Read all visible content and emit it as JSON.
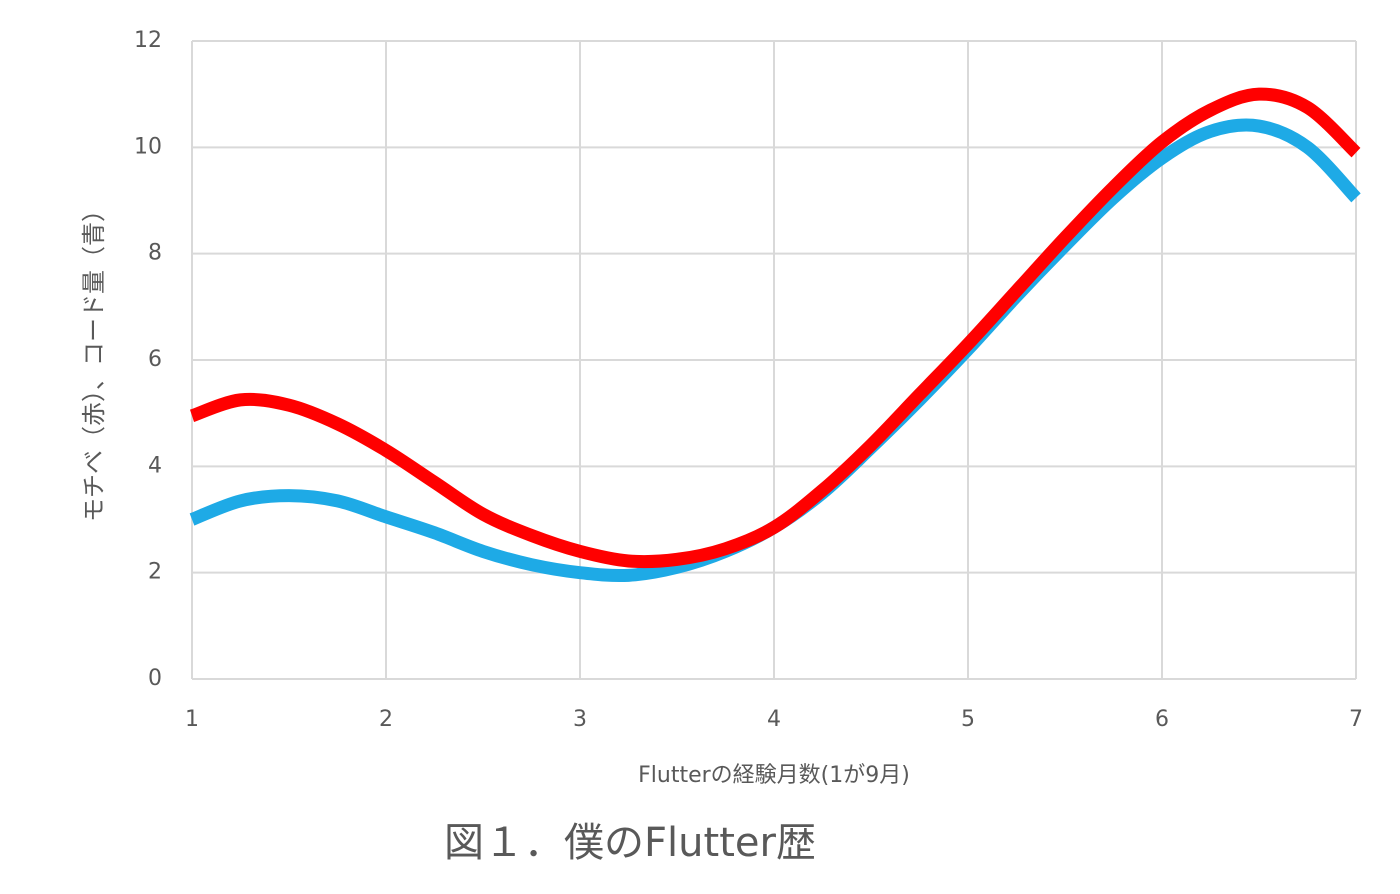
{
  "chart_data": {
    "type": "line",
    "x_label": "Flutterの経験月数(1が9月)",
    "y_label": "モチベ（赤）、コード量（青）",
    "x": [
      1,
      1.25,
      1.5,
      1.75,
      2,
      2.25,
      2.5,
      2.75,
      3,
      3.25,
      3.5,
      3.75,
      4,
      4.25,
      4.5,
      4.75,
      5,
      5.25,
      5.5,
      5.75,
      6,
      6.25,
      6.5,
      6.75,
      7
    ],
    "series": [
      {
        "color": "#1eaae6",
        "values": [
          3.0,
          3.35,
          3.45,
          3.35,
          3.05,
          2.75,
          2.4,
          2.15,
          2.0,
          1.95,
          2.1,
          2.4,
          2.85,
          3.5,
          4.35,
          5.25,
          6.2,
          7.2,
          8.15,
          9.05,
          9.8,
          10.3,
          10.4,
          10.0,
          9.05
        ]
      },
      {
        "color": "#ff0000",
        "values": [
          4.95,
          5.25,
          5.15,
          4.8,
          4.3,
          3.7,
          3.1,
          2.7,
          2.4,
          2.22,
          2.25,
          2.45,
          2.85,
          3.55,
          4.4,
          5.35,
          6.3,
          7.3,
          8.3,
          9.25,
          10.1,
          10.7,
          11.0,
          10.75,
          9.9
        ]
      }
    ],
    "xlim": [
      1,
      7
    ],
    "xticks": [
      1,
      2,
      3,
      4,
      5,
      6,
      7
    ],
    "ylim": [
      0,
      12
    ],
    "yticks": [
      0,
      2,
      4,
      6,
      8,
      10,
      12
    ],
    "grid": true
  },
  "caption": "図１．僕のFlutter歴"
}
